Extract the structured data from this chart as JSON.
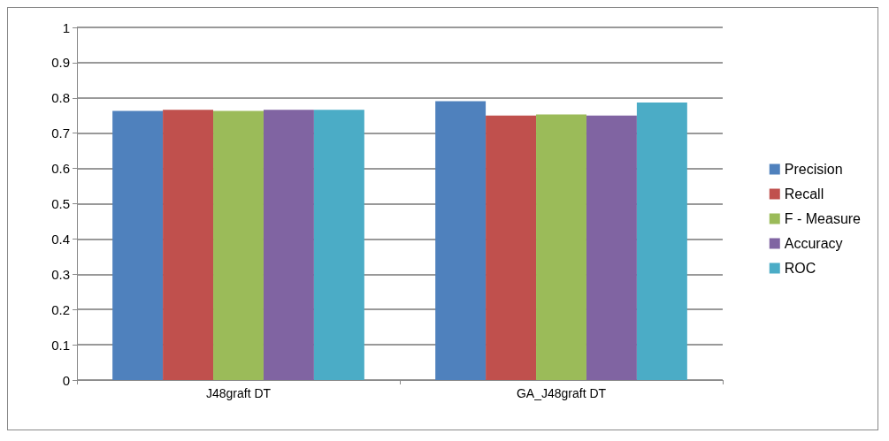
{
  "chart_data": {
    "type": "bar",
    "categories": [
      "J48graft DT",
      "GA_J48graft DT"
    ],
    "series": [
      {
        "name": "Precision",
        "color": "#4f81bd",
        "values": [
          0.763,
          0.791
        ]
      },
      {
        "name": "Recall",
        "color": "#c0504d",
        "values": [
          0.766,
          0.75
        ]
      },
      {
        "name": "F - Measure",
        "color": "#9bbb59",
        "values": [
          0.763,
          0.753
        ]
      },
      {
        "name": "Accuracy",
        "color": "#8064a2",
        "values": [
          0.766,
          0.75
        ]
      },
      {
        "name": "ROC",
        "color": "#4bacc6",
        "values": [
          0.766,
          0.787
        ]
      }
    ],
    "ylim": [
      0,
      1
    ],
    "yticks": [
      0,
      0.1,
      0.2,
      0.3,
      0.4,
      0.5,
      0.6,
      0.7,
      0.8,
      0.9,
      1
    ],
    "grid": "y",
    "legend": "right"
  }
}
